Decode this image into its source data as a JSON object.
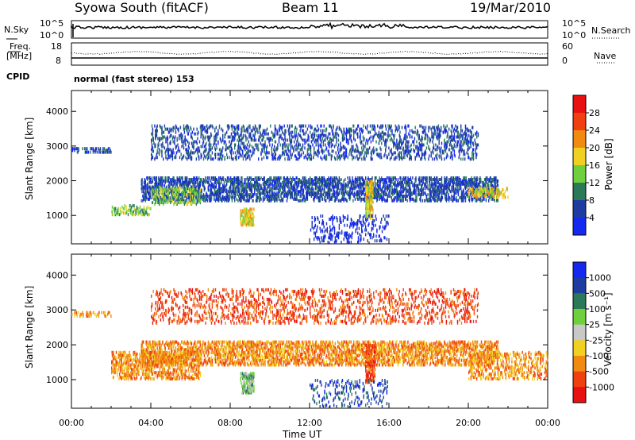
{
  "header": {
    "station": "Syowa South (fitACF)",
    "beam": "Beam 11",
    "date": "19/Mar/2010"
  },
  "summary": {
    "nsky_label": "N.Sky",
    "nsky_ticks": [
      "10^5",
      "10^0"
    ],
    "nsearch_label": "N.Search",
    "freq_label_1": "Freq.",
    "freq_label_2": "[MHz]",
    "freq_ticks": [
      "18",
      "8"
    ],
    "nave_label": "Nave",
    "nave_ticks": [
      "60",
      "0"
    ],
    "cpid_label": "CPID",
    "mode_text": "normal (fast stereo) 153"
  },
  "chart_data": [
    {
      "type": "heatmap",
      "name": "power-panel",
      "ylabel": "Slant Range [km]",
      "xlabel": "",
      "ylim": [
        180,
        4600
      ],
      "xlim_hours": [
        0,
        24
      ],
      "y_ticks": [
        1000,
        2000,
        3000,
        4000
      ],
      "colorbar_label": "Power [dB]",
      "colorbar_ticks": [
        "4",
        "8",
        "12",
        "16",
        "20",
        "24",
        "28"
      ],
      "colorbar_colors": [
        "#1428f0",
        "#1e3ca0",
        "#2a7a5a",
        "#6fcf3c",
        "#f0d020",
        "#f08a10",
        "#f04010",
        "#e81010"
      ],
      "regions": [
        {
          "t0": 4.0,
          "t1": 20.5,
          "r0": 2600,
          "r1": 3600,
          "level": 1,
          "density": 0.18
        },
        {
          "t0": 3.5,
          "t1": 21.5,
          "r0": 1400,
          "r1": 2100,
          "level": 1,
          "density": 0.35
        },
        {
          "t0": 4.0,
          "t1": 6.5,
          "r0": 1300,
          "r1": 1800,
          "level": 3,
          "density": 0.3
        },
        {
          "t0": 8.5,
          "t1": 9.2,
          "r0": 700,
          "r1": 1200,
          "level": 4,
          "density": 0.5
        },
        {
          "t0": 14.8,
          "t1": 15.2,
          "r0": 900,
          "r1": 2000,
          "level": 4,
          "density": 0.5
        },
        {
          "t0": 2.0,
          "t1": 4.0,
          "r0": 1000,
          "r1": 1300,
          "level": 3,
          "density": 0.25
        },
        {
          "t0": 0.0,
          "t1": 2.0,
          "r0": 2800,
          "r1": 2950,
          "level": 1,
          "density": 0.3
        },
        {
          "t0": 12.0,
          "t1": 16.0,
          "r0": 200,
          "r1": 1000,
          "level": 0,
          "density": 0.12
        },
        {
          "t0": 20.0,
          "t1": 22.0,
          "r0": 1500,
          "r1": 1800,
          "level": 4,
          "density": 0.3
        }
      ]
    },
    {
      "type": "heatmap",
      "name": "velocity-panel",
      "ylabel": "Slant Range [km]",
      "xlabel": "Time UT",
      "ylim": [
        180,
        4600
      ],
      "xlim_hours": [
        0,
        24
      ],
      "y_ticks": [
        1000,
        2000,
        3000,
        4000
      ],
      "x_ticks": [
        "00:00",
        "04:00",
        "08:00",
        "12:00",
        "16:00",
        "20:00",
        "00:00"
      ],
      "colorbar_label": "Velocity [m s⁻¹]",
      "colorbar_ticks": [
        "1000",
        "500",
        "100",
        "25",
        "-25",
        "-100",
        "-500",
        "-1000"
      ],
      "colorbar_colors": [
        "#1428f0",
        "#1e3ca0",
        "#2a7a5a",
        "#6fcf3c",
        "#c8c8c8",
        "#f0d020",
        "#f08a10",
        "#f04010",
        "#e81010"
      ],
      "regions": [
        {
          "t0": 4.0,
          "t1": 20.5,
          "r0": 2600,
          "r1": 3600,
          "level": 7,
          "density": 0.14
        },
        {
          "t0": 3.5,
          "t1": 21.5,
          "r0": 1400,
          "r1": 2100,
          "level": 6,
          "density": 0.33
        },
        {
          "t0": 2.0,
          "t1": 6.5,
          "r0": 1000,
          "r1": 1800,
          "level": 6,
          "density": 0.3
        },
        {
          "t0": 8.5,
          "t1": 9.2,
          "r0": 600,
          "r1": 1200,
          "level": 3,
          "density": 0.45
        },
        {
          "t0": 14.8,
          "t1": 15.3,
          "r0": 900,
          "r1": 2000,
          "level": 7,
          "density": 0.45
        },
        {
          "t0": 0.0,
          "t1": 2.0,
          "r0": 2800,
          "r1": 2950,
          "level": 6,
          "density": 0.3
        },
        {
          "t0": 12.0,
          "t1": 16.0,
          "r0": 200,
          "r1": 1000,
          "level": 1,
          "density": 0.1
        },
        {
          "t0": 20.0,
          "t1": 24.0,
          "r0": 1000,
          "r1": 1800,
          "level": 6,
          "density": 0.2
        }
      ]
    }
  ]
}
